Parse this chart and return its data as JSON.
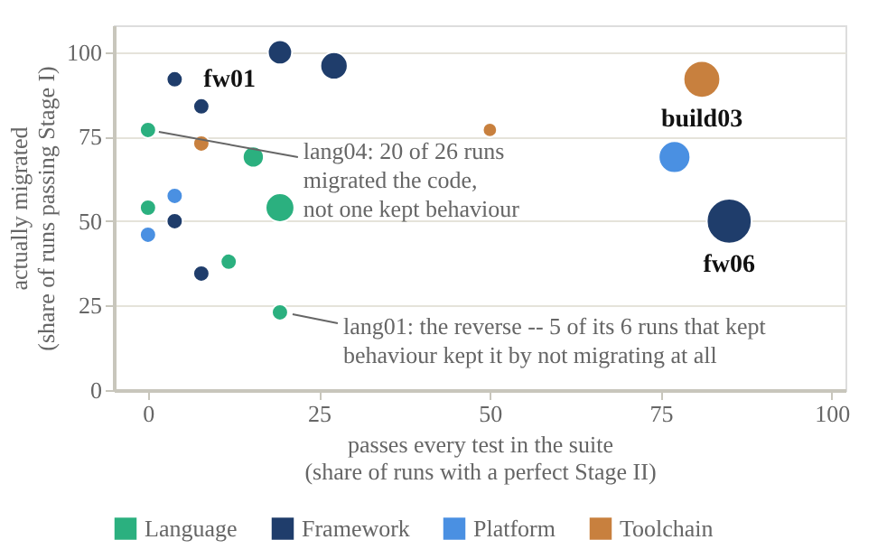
{
  "chart_data": {
    "type": "bubble",
    "xlabel": "passes every test in the suite\n(share of runs with a perfect Stage II)",
    "ylabel": "actually migrated\n(share of runs passing Stage I)",
    "xlim": [
      -5,
      102
    ],
    "ylim": [
      0,
      108
    ],
    "xticks": [
      0,
      25,
      50,
      75,
      100
    ],
    "yticks": [
      0,
      25,
      50,
      75,
      100
    ],
    "grid": "y",
    "legend": "bottom",
    "series": [
      {
        "name": "Language",
        "color": "#2bb07f",
        "x": [
          0,
          15.4,
          19.3,
          0,
          11.8,
          19.3
        ],
        "values": [
          77,
          69,
          54,
          54,
          38,
          23
        ],
        "sizes": [
          0.13,
          0.22,
          0.41,
          0.13,
          0.13,
          0.13
        ]
      },
      {
        "name": "Framework",
        "color": "#1f3d6b",
        "x": [
          3.9,
          19.3,
          27.2,
          7.8,
          3.9,
          7.8,
          85
        ],
        "values": [
          92,
          100,
          96,
          84,
          50,
          34.5,
          50
        ],
        "sizes": [
          0.13,
          0.29,
          0.37,
          0.13,
          0.13,
          0.13,
          1
        ]
      },
      {
        "name": "Platform",
        "color": "#4a90e2",
        "x": [
          3.9,
          0,
          77
        ],
        "values": [
          57.5,
          46,
          69
        ],
        "sizes": [
          0.13,
          0.13,
          0.5
        ]
      },
      {
        "name": "Toolchain",
        "color": "#c8803e",
        "x": [
          7.8,
          50,
          81
        ],
        "values": [
          73,
          77,
          92
        ],
        "sizes": [
          0.13,
          0.1,
          0.67
        ]
      }
    ],
    "annotations": [
      {
        "text": "fw01",
        "x": 3.9,
        "y": 92
      },
      {
        "text": "build03",
        "x": 81,
        "y": 92
      },
      {
        "text": "fw06",
        "x": 85,
        "y": 50
      },
      {
        "text": "lang04: 20 of 26 runs\nmigrated the code,\nnot one kept behaviour",
        "x": 0,
        "y": 77
      },
      {
        "text": "lang01: the reverse -- 5 of its 6 runs that kept\nbehaviour kept it by not migrating at all",
        "x": 19.3,
        "y": 23
      }
    ]
  }
}
